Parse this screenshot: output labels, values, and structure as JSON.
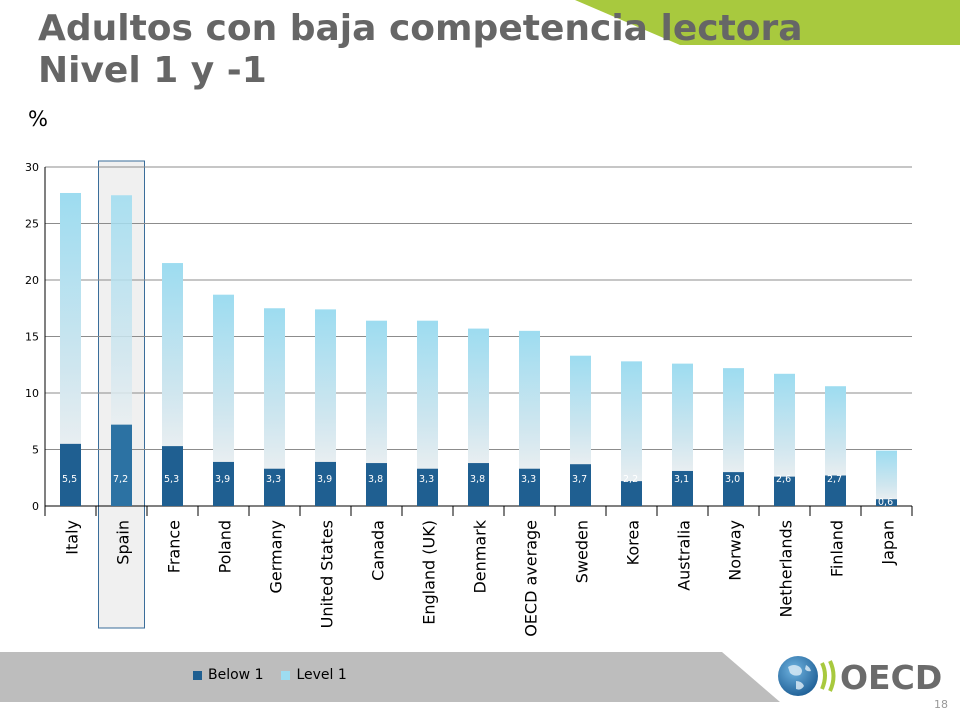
{
  "slide": {
    "title_line1": "Adultos con baja competencia lectora",
    "title_line2": "Nivel 1 y -1",
    "unit_label": "%",
    "page_number": "18",
    "logo_text": "OECD",
    "accent_color": "#a8c93e",
    "highlight_category": "Spain"
  },
  "chart_data": {
    "type": "bar",
    "stacked": true,
    "categories": [
      "Italy",
      "Spain",
      "France",
      "Poland",
      "Germany",
      "United States",
      "Canada",
      "England (UK)",
      "Denmark",
      "OECD average",
      "Sweden",
      "Korea",
      "Australia",
      "Norway",
      "Netherlands",
      "Finland",
      "Japan"
    ],
    "series": [
      {
        "name": "Below 1",
        "color": "#1f5f91",
        "values": [
          5.5,
          7.2,
          5.3,
          3.9,
          3.3,
          3.9,
          3.8,
          3.3,
          3.8,
          3.3,
          3.7,
          2.2,
          3.1,
          3.0,
          2.6,
          2.7,
          0.6
        ],
        "labels": [
          "5,5",
          "7,2",
          "5,3",
          "3,9",
          "3,3",
          "3,9",
          "3,8",
          "3,3",
          "3,8",
          "3,3",
          "3,7",
          "2,2",
          "3,1",
          "3,0",
          "2,6",
          "2,7",
          "0,6"
        ]
      },
      {
        "name": "Level 1",
        "color": "#9ddcf0",
        "values": [
          22.2,
          20.3,
          16.2,
          14.8,
          14.2,
          13.5,
          12.6,
          13.1,
          11.9,
          12.2,
          9.6,
          10.6,
          9.5,
          9.2,
          9.1,
          7.9,
          4.3
        ]
      }
    ],
    "y_ticks": [
      "0",
      "5",
      "10",
      "15",
      "20",
      "25",
      "30"
    ],
    "ylim": [
      0,
      30
    ],
    "grid": true,
    "legend_position": "bottom-left"
  }
}
